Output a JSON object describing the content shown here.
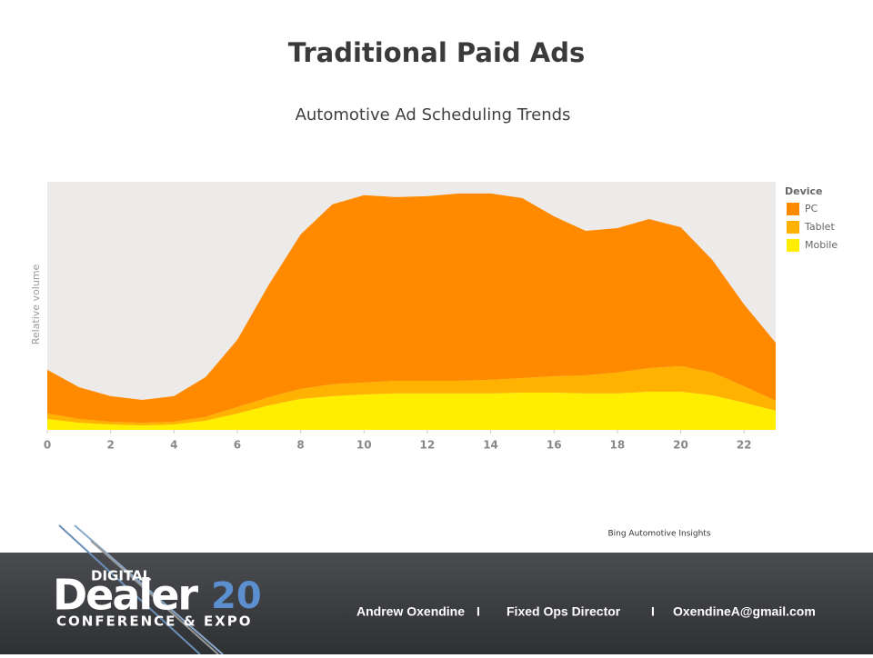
{
  "title": "Traditional Paid Ads",
  "subtitle": "Automotive Ad Scheduling Trends",
  "chart_data": {
    "type": "stacked-area",
    "y_label": "Relative volume",
    "legend_title": "Device",
    "legend": "right",
    "x": [
      0,
      1,
      2,
      3,
      4,
      5,
      6,
      7,
      8,
      9,
      10,
      11,
      12,
      13,
      14,
      15,
      16,
      17,
      18,
      19,
      20,
      21,
      22,
      23
    ],
    "xlim": [
      0,
      23
    ],
    "xticks": [
      0,
      2,
      4,
      6,
      8,
      10,
      12,
      14,
      16,
      18,
      20,
      22
    ],
    "ylim": [
      0,
      100
    ],
    "series": [
      {
        "name": "PC",
        "color": "#ff8a00",
        "values": [
          17.6,
          12.8,
          10.3,
          9.2,
          10.3,
          16.1,
          27.1,
          45.4,
          62.3,
          72.5,
          75.5,
          74.0,
          74.4,
          75.5,
          75.1,
          72.5,
          64.5,
          58.2,
          58.2,
          60.1,
          56.0,
          45.4,
          33.0,
          23.4
        ]
      },
      {
        "name": "Tablet",
        "color": "#ffb300",
        "values": [
          2.2,
          1.5,
          1.1,
          1.1,
          1.1,
          1.5,
          2.6,
          3.3,
          4.0,
          4.8,
          4.8,
          5.1,
          5.1,
          5.1,
          5.5,
          5.9,
          6.6,
          7.3,
          8.4,
          9.5,
          10.3,
          9.2,
          6.6,
          4.0
        ]
      },
      {
        "name": "Mobile",
        "color": "#ffee00",
        "values": [
          4.4,
          2.9,
          2.2,
          1.8,
          2.2,
          3.7,
          6.6,
          9.9,
          12.5,
          13.6,
          14.3,
          14.7,
          14.7,
          14.7,
          14.7,
          15.0,
          15.0,
          14.7,
          14.7,
          15.4,
          15.4,
          13.9,
          11.0,
          7.7
        ]
      }
    ]
  },
  "source": "Bing Automotive Insights",
  "logo": {
    "top": "DIGITAL",
    "word": "Dealer",
    "number": "20",
    "tagline": "CONFERENCE & EXPO"
  },
  "footer": {
    "name": "Andrew Oxendine",
    "separator_1": "I",
    "role": "Fixed Ops Director",
    "separator_2": "I",
    "email": "OxendineA@gmail.com"
  }
}
